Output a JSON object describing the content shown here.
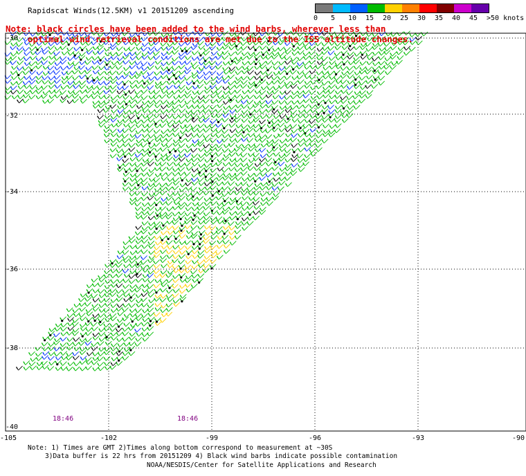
{
  "header": {
    "title": "Rapidscat Winds(12.5KM) v1 20151209 ascending",
    "note_line1": "Note: black circles have been added to the wind barbs, wherever less than",
    "note_line2": "optimal wind retrieval conditions are met due to the ISS altitude changes."
  },
  "legend": {
    "labels": [
      "0",
      "5",
      "10",
      "15",
      "20",
      "25",
      "30",
      "35",
      "40",
      "45",
      ">50 knots"
    ],
    "colors": [
      "#7a7a7a",
      "#00bbff",
      "#0060ff",
      "#00bb00",
      "#ffd000",
      "#ff8000",
      "#ff0000",
      "#800000",
      "#cc00cc",
      "#6600aa"
    ]
  },
  "axes": {
    "y_labels": [
      "-30",
      "-32",
      "-34",
      "-36",
      "-38",
      "-40"
    ],
    "x_labels": [
      "-105",
      "-102",
      "-99",
      "-96",
      "-93",
      "-90"
    ]
  },
  "times": [
    "18:46",
    "18:46"
  ],
  "footer": {
    "line1": "Note: 1) Times are GMT 2)Times along bottom correspond to measurement at ~30S",
    "line2": "3)Data buffer is 22 hrs from 20151209 4) Black wind barbs indicate possible contamination",
    "credit": "NOAA/NESDIS/Center for Satellite Applications and Research"
  },
  "map_data": {
    "lon_range": [
      -105,
      -90
    ],
    "lat_range": [
      -40,
      -29.5
    ],
    "grid_lines": "dotted",
    "swath_color_dominant": "#00bb00"
  }
}
